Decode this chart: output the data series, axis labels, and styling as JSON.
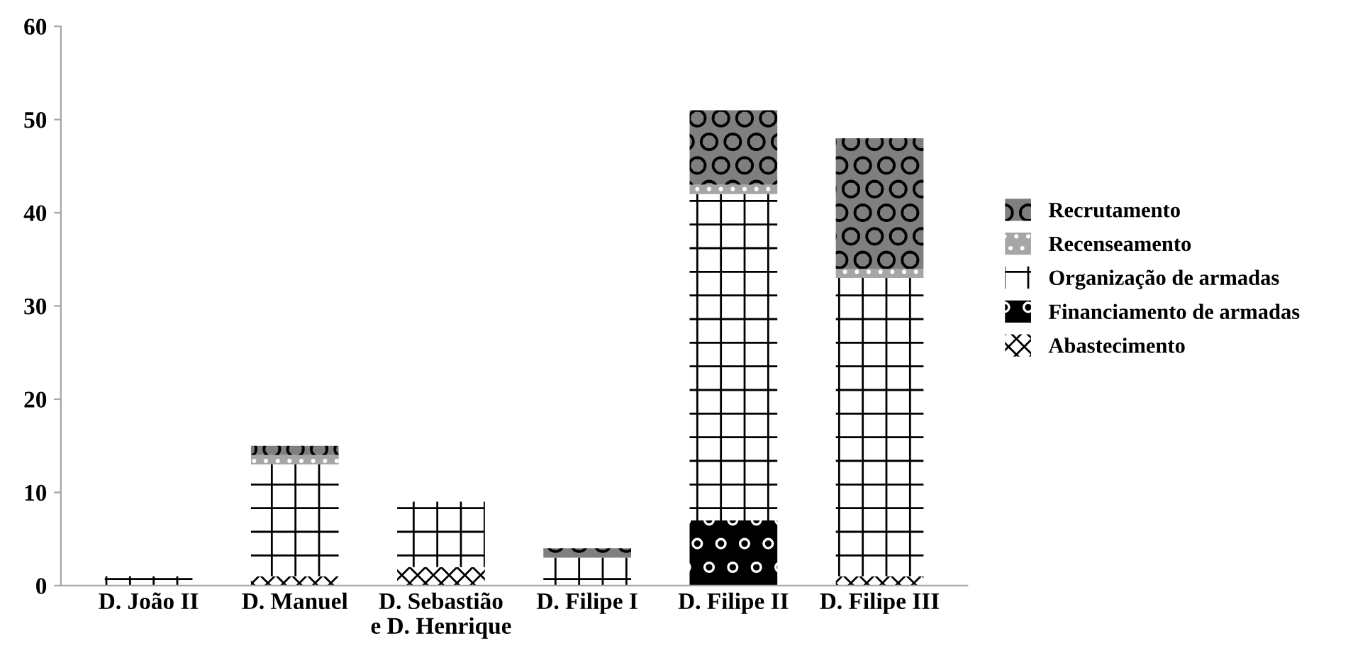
{
  "chart_data": {
    "type": "bar",
    "stacked": true,
    "categories": [
      "D. João II",
      "D. Manuel",
      "D. Sebastião\ne D. Henrique",
      "D. Filipe I",
      "D. Filipe II",
      "D. Filipe III"
    ],
    "series": [
      {
        "name": "Abastecimento",
        "color": "#ffffff",
        "values": [
          0,
          1,
          2,
          0,
          0,
          1
        ]
      },
      {
        "name": "Financiamento de armadas",
        "color": "#000000",
        "values": [
          0,
          0,
          0,
          0,
          7,
          0
        ]
      },
      {
        "name": "Organização de armadas",
        "color": "#ffffff",
        "values": [
          1,
          12,
          7,
          3,
          35,
          32
        ]
      },
      {
        "name": "Recenseamento",
        "color": "#a6a6a6",
        "values": [
          0,
          1,
          0,
          0,
          1,
          1
        ]
      },
      {
        "name": "Recrutamento",
        "color": "#7f7f7f",
        "values": [
          0,
          1,
          0,
          1,
          8,
          14
        ]
      }
    ],
    "ylim": [
      0,
      60
    ],
    "yticks": [
      0,
      10,
      20,
      30,
      40,
      50,
      60
    ],
    "grid": false,
    "legend": "right"
  }
}
